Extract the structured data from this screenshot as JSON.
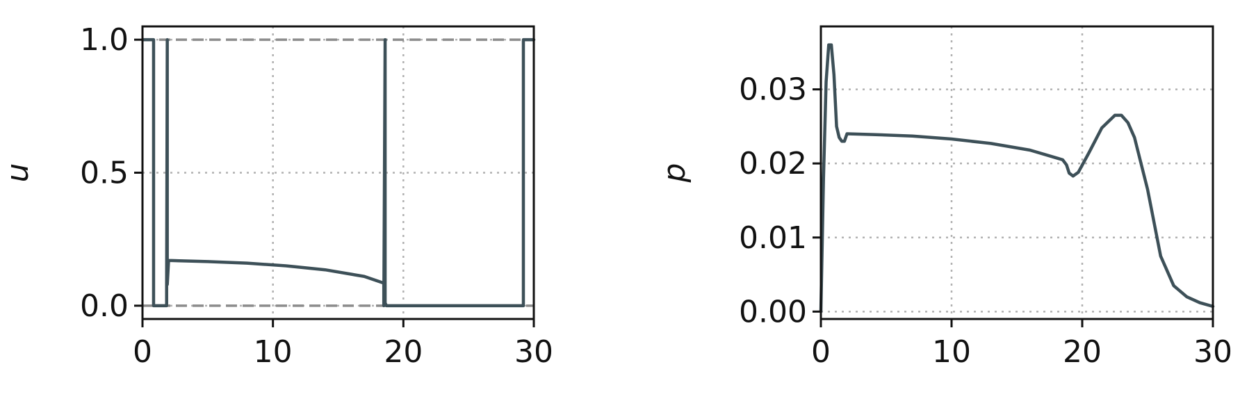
{
  "colors": {
    "line": "#3d5058",
    "reference": "#8c8c8c",
    "grid": "#b0b0b0",
    "axes": "#111111",
    "background": "#ffffff"
  },
  "chart_data": [
    {
      "type": "line",
      "title": "",
      "xlabel": "",
      "ylabel": "u",
      "xlim": [
        0,
        30
      ],
      "ylim": [
        -0.05,
        1.05
      ],
      "xticks": [
        "0",
        "10",
        "20",
        "30"
      ],
      "yticks": [
        "0.0",
        "0.5",
        "1.0"
      ],
      "grid": "dotted",
      "reference_lines": [
        0,
        1
      ],
      "series": [
        {
          "x": [
            0.0,
            0.85,
            0.85,
            1.0,
            1.0,
            1.85,
            1.85,
            1.9,
            1.9,
            2.0,
            5,
            8,
            11,
            14,
            17,
            18.5,
            18.5,
            18.6,
            18.6,
            18.7,
            18.7,
            29.2,
            29.2,
            30.0
          ],
          "y": [
            1.0,
            1.0,
            0.0,
            0.0,
            0.0,
            0.0,
            0.08,
            1.0,
            0.08,
            0.17,
            0.166,
            0.16,
            0.15,
            0.135,
            0.11,
            0.085,
            0.0,
            1.0,
            0.01,
            0.0,
            0.0,
            0.0,
            1.0,
            1.0
          ]
        }
      ]
    },
    {
      "type": "line",
      "title": "",
      "xlabel": "",
      "ylabel": "p",
      "xlim": [
        0,
        30
      ],
      "ylim": [
        -0.001,
        0.0385
      ],
      "xticks": [
        "0",
        "10",
        "20",
        "30"
      ],
      "yticks": [
        "0.00",
        "0.01",
        "0.02",
        "0.03"
      ],
      "grid": "dotted",
      "series": [
        {
          "x": [
            0.0,
            0.2,
            0.4,
            0.6,
            0.8,
            1.0,
            1.2,
            1.4,
            1.6,
            1.8,
            2.0,
            4,
            7,
            10,
            13,
            16,
            18.5,
            18.8,
            19.0,
            19.3,
            19.7,
            20.5,
            21.5,
            22.5,
            23.0,
            23.5,
            24.0,
            25.0,
            26.0,
            27.0,
            28.0,
            29.0,
            30.0
          ],
          "y": [
            0.0,
            0.018,
            0.031,
            0.036,
            0.036,
            0.032,
            0.025,
            0.0235,
            0.023,
            0.023,
            0.024,
            0.0239,
            0.0237,
            0.0233,
            0.0227,
            0.0218,
            0.0205,
            0.0198,
            0.0187,
            0.0183,
            0.0188,
            0.0214,
            0.0248,
            0.0265,
            0.0265,
            0.0255,
            0.0235,
            0.0165,
            0.0075,
            0.0035,
            0.002,
            0.0012,
            0.0007
          ]
        }
      ]
    }
  ]
}
